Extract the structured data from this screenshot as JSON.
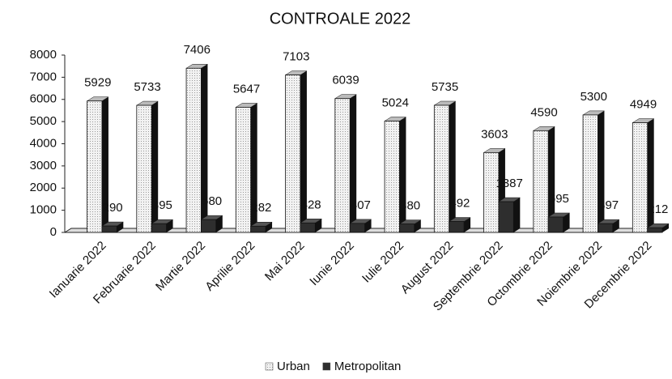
{
  "chart_data": {
    "type": "bar3d",
    "title": "CONTROALE 2022",
    "categories": [
      "Ianuarie 2022",
      "Februarie 2022",
      "Martie 2022",
      "Aprilie 2022",
      "Mai 2022",
      "Iunie 2022",
      "Iulie 2022",
      "August 2022",
      "Septembrie 2022",
      "Octombrie 2022",
      "Noiembrie 2022",
      "Decembrie 2022"
    ],
    "series": [
      {
        "name": "Urban",
        "color": "#e6e6e6",
        "values": [
          5929,
          5733,
          7406,
          5647,
          7103,
          6039,
          5024,
          5735,
          3603,
          4590,
          5300,
          4949
        ]
      },
      {
        "name": "Metropolitan",
        "color": "#2e2e2e",
        "values": [
          290,
          395,
          580,
          282,
          428,
          407,
          380,
          492,
          1387,
          695,
          397,
          212
        ]
      }
    ],
    "ylim": [
      0,
      8000
    ],
    "yticks": [
      0,
      1000,
      2000,
      3000,
      4000,
      5000,
      6000,
      7000,
      8000
    ],
    "legend": "bottom"
  }
}
